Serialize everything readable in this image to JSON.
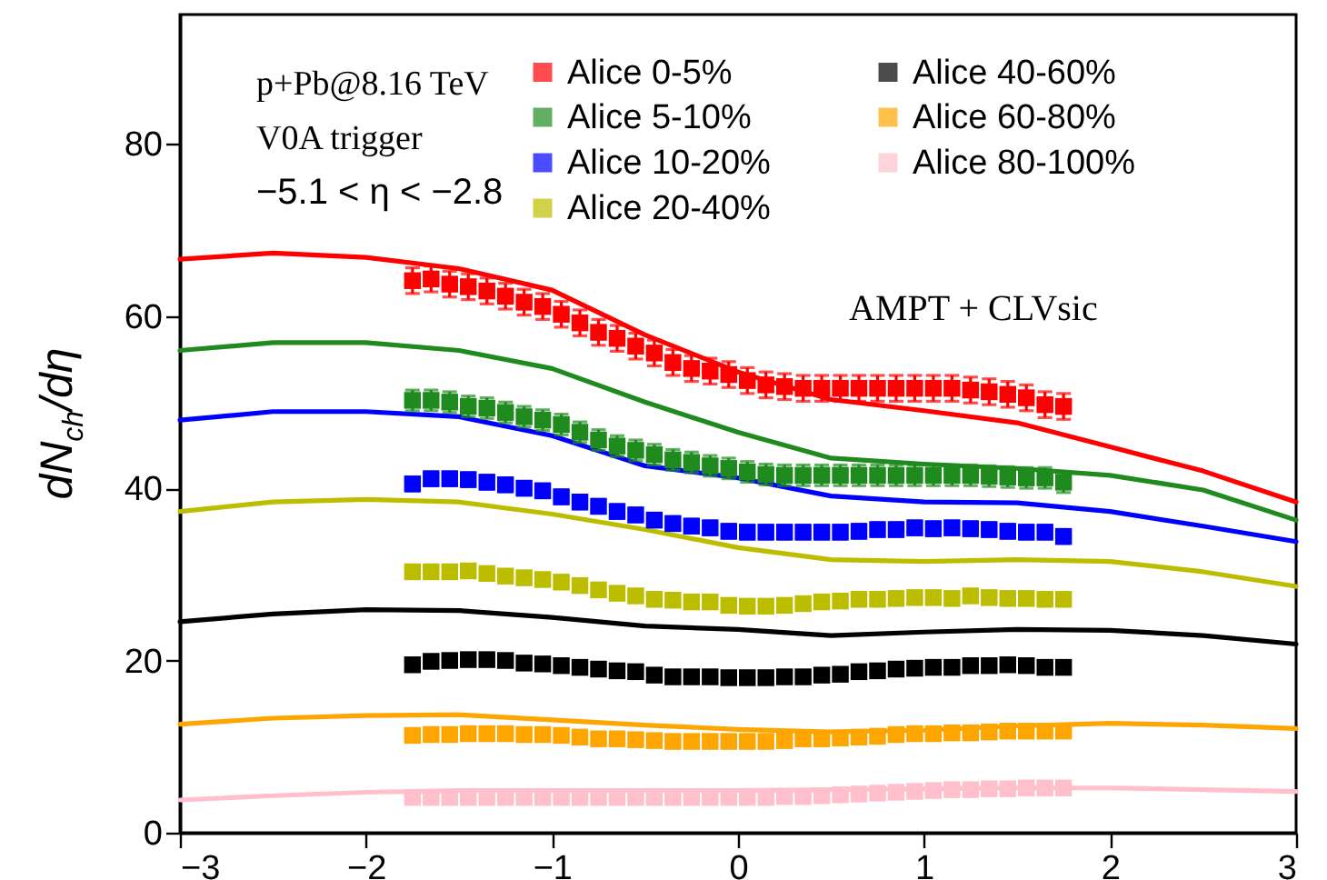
{
  "chart_data": {
    "type": "scatter",
    "ylabel": "dN$_{ch}$/dη",
    "xlim": [
      -3,
      3
    ],
    "xticks": [
      -3,
      -2,
      -1,
      0,
      1,
      2,
      3
    ],
    "ylim": [
      0,
      95
    ],
    "yticks": [
      0,
      20,
      40,
      60,
      80
    ],
    "grid": false,
    "legend": "top right",
    "marker": "square",
    "line_style": "solid",
    "annotations": [
      "p+Pb@8.16 TeV",
      "V0A trigger",
      "−5.1 < η < −2.8",
      "AMPT + CLVsic"
    ],
    "x": [
      -1.75,
      -1.65,
      -1.55,
      -1.45,
      -1.35,
      -1.25,
      -1.15,
      -1.05,
      -0.95,
      -0.85,
      -0.75,
      -0.65,
      -0.55,
      -0.45,
      -0.35,
      -0.25,
      -0.15,
      -0.05,
      0.05,
      0.15,
      0.25,
      0.35,
      0.45,
      0.55,
      0.65,
      0.75,
      0.85,
      0.95,
      1.05,
      1.15,
      1.25,
      1.35,
      1.45,
      1.55,
      1.65,
      1.75
    ],
    "series": [
      {
        "name": "Alice 0-5%",
        "color": "#ff0000",
        "values": [
          64.1,
          64.3,
          63.7,
          63.4,
          62.9,
          62.3,
          61.6,
          61.1,
          60.2,
          59.2,
          58.1,
          57.4,
          56.5,
          55.7,
          54.6,
          53.9,
          53.6,
          53.2,
          52.5,
          52.0,
          51.8,
          51.6,
          51.6,
          51.6,
          51.6,
          51.6,
          51.6,
          51.6,
          51.6,
          51.6,
          51.4,
          51.2,
          50.9,
          50.5,
          49.7,
          49.5
        ],
        "errors": [
          1.5,
          1.5,
          1.5,
          1.5,
          1.5,
          1.5,
          1.5,
          1.5,
          1.5,
          1.5,
          1.5,
          1.5,
          1.5,
          1.5,
          1.5,
          1.5,
          1.5,
          1.5,
          1.5,
          1.5,
          1.5,
          1.5,
          1.5,
          1.5,
          1.5,
          1.5,
          1.5,
          1.5,
          1.5,
          1.5,
          1.5,
          1.5,
          1.5,
          1.5,
          1.5,
          1.5
        ]
      },
      {
        "name": "Alice 5-10%",
        "color": "#1f8b1f",
        "values": [
          50.2,
          50.2,
          50.0,
          49.5,
          49.3,
          48.8,
          48.3,
          47.9,
          47.4,
          46.5,
          45.6,
          44.9,
          44.4,
          43.9,
          43.3,
          43.0,
          42.6,
          42.3,
          41.9,
          41.6,
          41.5,
          41.5,
          41.5,
          41.5,
          41.5,
          41.5,
          41.5,
          41.5,
          41.5,
          41.5,
          41.5,
          41.4,
          41.3,
          41.2,
          41.2,
          40.7
        ],
        "errors": [
          1.2,
          1.2,
          1.2,
          1.2,
          1.2,
          1.2,
          1.2,
          1.2,
          1.2,
          1.2,
          1.2,
          1.2,
          1.2,
          1.2,
          1.2,
          1.2,
          1.2,
          1.2,
          1.2,
          1.2,
          1.2,
          1.2,
          1.2,
          1.2,
          1.2,
          1.2,
          1.2,
          1.2,
          1.2,
          1.2,
          1.2,
          1.2,
          1.2,
          1.2,
          1.2,
          1.2
        ]
      },
      {
        "name": "Alice 10-20%",
        "color": "#0000ff",
        "values": [
          40.5,
          41.1,
          41.1,
          41.0,
          40.7,
          40.4,
          40.0,
          39.7,
          39.0,
          38.4,
          37.9,
          37.3,
          36.9,
          36.3,
          35.9,
          35.6,
          35.4,
          35.0,
          34.9,
          34.9,
          34.9,
          34.9,
          34.9,
          34.9,
          35.0,
          35.2,
          35.2,
          35.4,
          35.3,
          35.4,
          35.3,
          35.2,
          35.0,
          34.9,
          34.9,
          34.4
        ],
        "errors": [
          0.8,
          0.8,
          0.8,
          0.8,
          0.8,
          0.8,
          0.8,
          0.8,
          0.8,
          0.8,
          0.8,
          0.8,
          0.8,
          0.8,
          0.8,
          0.8,
          0.8,
          0.8,
          0.8,
          0.8,
          0.8,
          0.8,
          0.8,
          0.8,
          0.8,
          0.8,
          0.8,
          0.8,
          0.8,
          0.8,
          0.8,
          0.8,
          0.8,
          0.8,
          0.8,
          0.8
        ]
      },
      {
        "name": "Alice 20-40%",
        "color": "#bdbd00",
        "values": [
          30.3,
          30.3,
          30.3,
          30.4,
          30.1,
          29.8,
          29.6,
          29.4,
          29.1,
          28.7,
          28.2,
          27.8,
          27.5,
          27.1,
          27.0,
          26.8,
          26.8,
          26.4,
          26.3,
          26.3,
          26.4,
          26.6,
          26.8,
          26.9,
          27.1,
          27.1,
          27.2,
          27.3,
          27.3,
          27.2,
          27.5,
          27.3,
          27.2,
          27.2,
          27.1,
          27.1
        ]
      },
      {
        "name": "Alice 40-60%",
        "color": "#000000",
        "values": [
          19.5,
          19.9,
          20.0,
          20.1,
          20.1,
          20.0,
          19.7,
          19.6,
          19.4,
          19.2,
          19.0,
          18.8,
          18.7,
          18.3,
          18.1,
          18.1,
          18.1,
          18.0,
          18.0,
          18.0,
          18.1,
          18.1,
          18.3,
          18.4,
          18.7,
          18.8,
          19.0,
          19.1,
          19.2,
          19.2,
          19.4,
          19.4,
          19.5,
          19.4,
          19.2,
          19.2
        ]
      },
      {
        "name": "Alice 60-80%",
        "color": "#ffa500",
        "values": [
          11.3,
          11.4,
          11.4,
          11.5,
          11.5,
          11.5,
          11.4,
          11.4,
          11.3,
          11.1,
          10.9,
          10.9,
          10.8,
          10.7,
          10.6,
          10.6,
          10.6,
          10.6,
          10.6,
          10.6,
          10.7,
          10.9,
          10.9,
          11.0,
          11.1,
          11.2,
          11.4,
          11.5,
          11.5,
          11.6,
          11.6,
          11.7,
          11.8,
          11.8,
          11.8,
          11.8
        ]
      },
      {
        "name": "Alice 80-100%",
        "color": "#ffc0cb",
        "values": [
          4.1,
          4.1,
          4.1,
          4.1,
          4.1,
          4.1,
          4.1,
          4.1,
          4.1,
          4.1,
          4.1,
          4.1,
          4.1,
          4.1,
          4.1,
          4.1,
          4.1,
          4.1,
          4.1,
          4.1,
          4.2,
          4.2,
          4.3,
          4.4,
          4.5,
          4.6,
          4.7,
          4.8,
          4.9,
          5.0,
          5.0,
          5.1,
          5.1,
          5.2,
          5.2,
          5.2
        ]
      },
      {
        "type": "line",
        "marker": "none",
        "color": "#ff0000",
        "x": [
          -3,
          -2.5,
          -2,
          -1.5,
          -1,
          -0.5,
          0,
          0.5,
          1,
          1.5,
          2,
          2.5,
          3
        ],
        "values": [
          66.6,
          67.3,
          66.8,
          65.5,
          63.0,
          57.8,
          53.5,
          50.3,
          49.0,
          47.6,
          44.8,
          42.0,
          38.4
        ]
      },
      {
        "type": "line",
        "marker": "none",
        "color": "#1f8b1f",
        "x": [
          -3,
          -2.5,
          -2,
          -1.5,
          -1,
          -0.5,
          0,
          0.5,
          1,
          1.5,
          2,
          2.5,
          3
        ],
        "values": [
          56.0,
          56.9,
          56.9,
          56.0,
          53.9,
          50.0,
          46.5,
          43.5,
          42.8,
          42.3,
          41.5,
          39.8,
          36.3
        ]
      },
      {
        "type": "line",
        "marker": "none",
        "color": "#0000ff",
        "x": [
          -3,
          -2.5,
          -2,
          -1.5,
          -1,
          -0.5,
          0,
          0.5,
          1,
          1.5,
          2,
          2.5,
          3
        ],
        "values": [
          47.9,
          48.9,
          48.9,
          48.3,
          46.1,
          42.6,
          41.2,
          39.1,
          38.4,
          38.3,
          37.3,
          35.6,
          33.8
        ]
      },
      {
        "type": "line",
        "marker": "none",
        "color": "#bdbd00",
        "x": [
          -3,
          -2.5,
          -2,
          -1.5,
          -1,
          -0.5,
          0,
          0.5,
          1,
          1.5,
          2,
          2.5,
          3
        ],
        "values": [
          37.3,
          38.4,
          38.7,
          38.4,
          37.0,
          35.2,
          33.1,
          31.7,
          31.5,
          31.7,
          31.5,
          30.3,
          28.6
        ]
      },
      {
        "type": "line",
        "marker": "none",
        "color": "#000000",
        "x": [
          -3,
          -2.5,
          -2,
          -1.5,
          -1,
          -0.5,
          0,
          0.5,
          1,
          1.5,
          2,
          2.5,
          3
        ],
        "values": [
          24.5,
          25.4,
          25.9,
          25.8,
          25.0,
          24.0,
          23.6,
          22.9,
          23.3,
          23.6,
          23.5,
          22.9,
          21.9
        ]
      },
      {
        "type": "line",
        "marker": "none",
        "color": "#ffa500",
        "x": [
          -3,
          -2.5,
          -2,
          -1.5,
          -1,
          -0.5,
          0,
          0.5,
          1,
          1.5,
          2,
          2.5,
          3
        ],
        "values": [
          12.6,
          13.3,
          13.6,
          13.7,
          13.1,
          12.5,
          12.0,
          11.7,
          11.9,
          12.4,
          12.7,
          12.5,
          12.1
        ]
      },
      {
        "type": "line",
        "marker": "none",
        "color": "#ffc0cb",
        "x": [
          -3,
          -2.5,
          -2,
          -1.5,
          -1,
          -0.5,
          0,
          0.5,
          1,
          1.5,
          2,
          2.5,
          3
        ],
        "values": [
          3.8,
          4.3,
          4.7,
          4.9,
          4.9,
          4.9,
          4.9,
          5.0,
          5.1,
          5.2,
          5.2,
          5.0,
          4.8
        ]
      }
    ]
  }
}
